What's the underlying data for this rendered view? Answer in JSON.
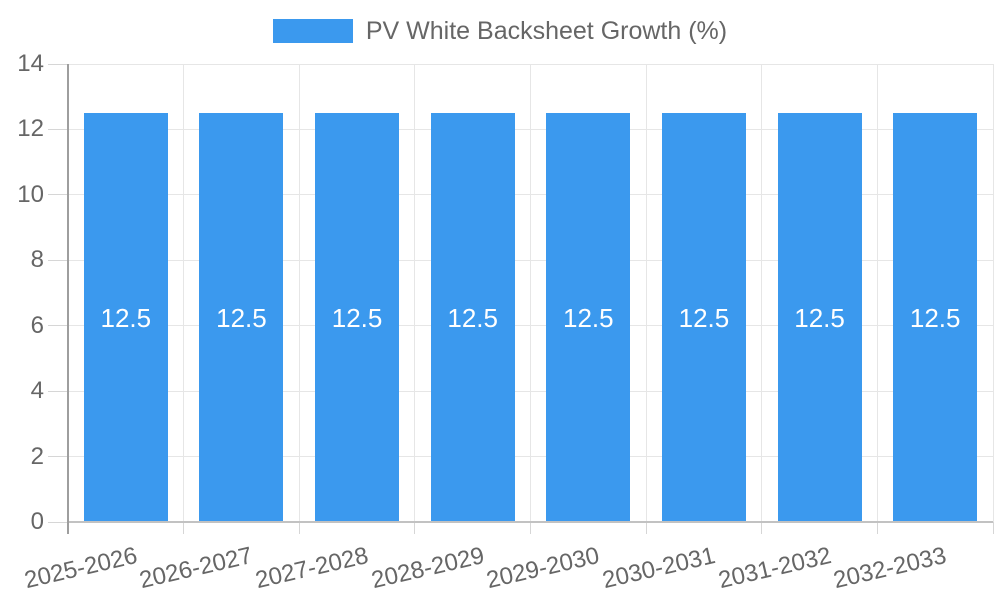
{
  "chart_data": {
    "type": "bar",
    "title": "PV White Backsheet Growth (%)",
    "categories": [
      "2025-2026",
      "2026-2027",
      "2027-2028",
      "2028-2029",
      "2029-2030",
      "2030-2031",
      "2031-2032",
      "2032-2033"
    ],
    "series": [
      {
        "name": "PV White Backsheet Growth (%)",
        "values": [
          12.5,
          12.5,
          12.5,
          12.5,
          12.5,
          12.5,
          12.5,
          12.5
        ]
      }
    ],
    "value_labels": [
      "12.5",
      "12.5",
      "12.5",
      "12.5",
      "12.5",
      "12.5",
      "12.5",
      "12.5"
    ],
    "xlabel": "",
    "ylabel": "",
    "ylim": [
      0,
      14
    ],
    "yticks": [
      0,
      2,
      4,
      6,
      8,
      10,
      12,
      14
    ],
    "grid": true,
    "legend_position": "top-center",
    "x_label_rotation_deg": -13,
    "colors": {
      "bar": "#3b99ee",
      "grid": "#e6e6e6",
      "tick": "#d6d6d6",
      "y_axis_line": "#9e9e9e",
      "x_axis_line": "#c2c2c2",
      "text": "#666666",
      "value_label": "#ffffff",
      "background": "#ffffff"
    }
  }
}
